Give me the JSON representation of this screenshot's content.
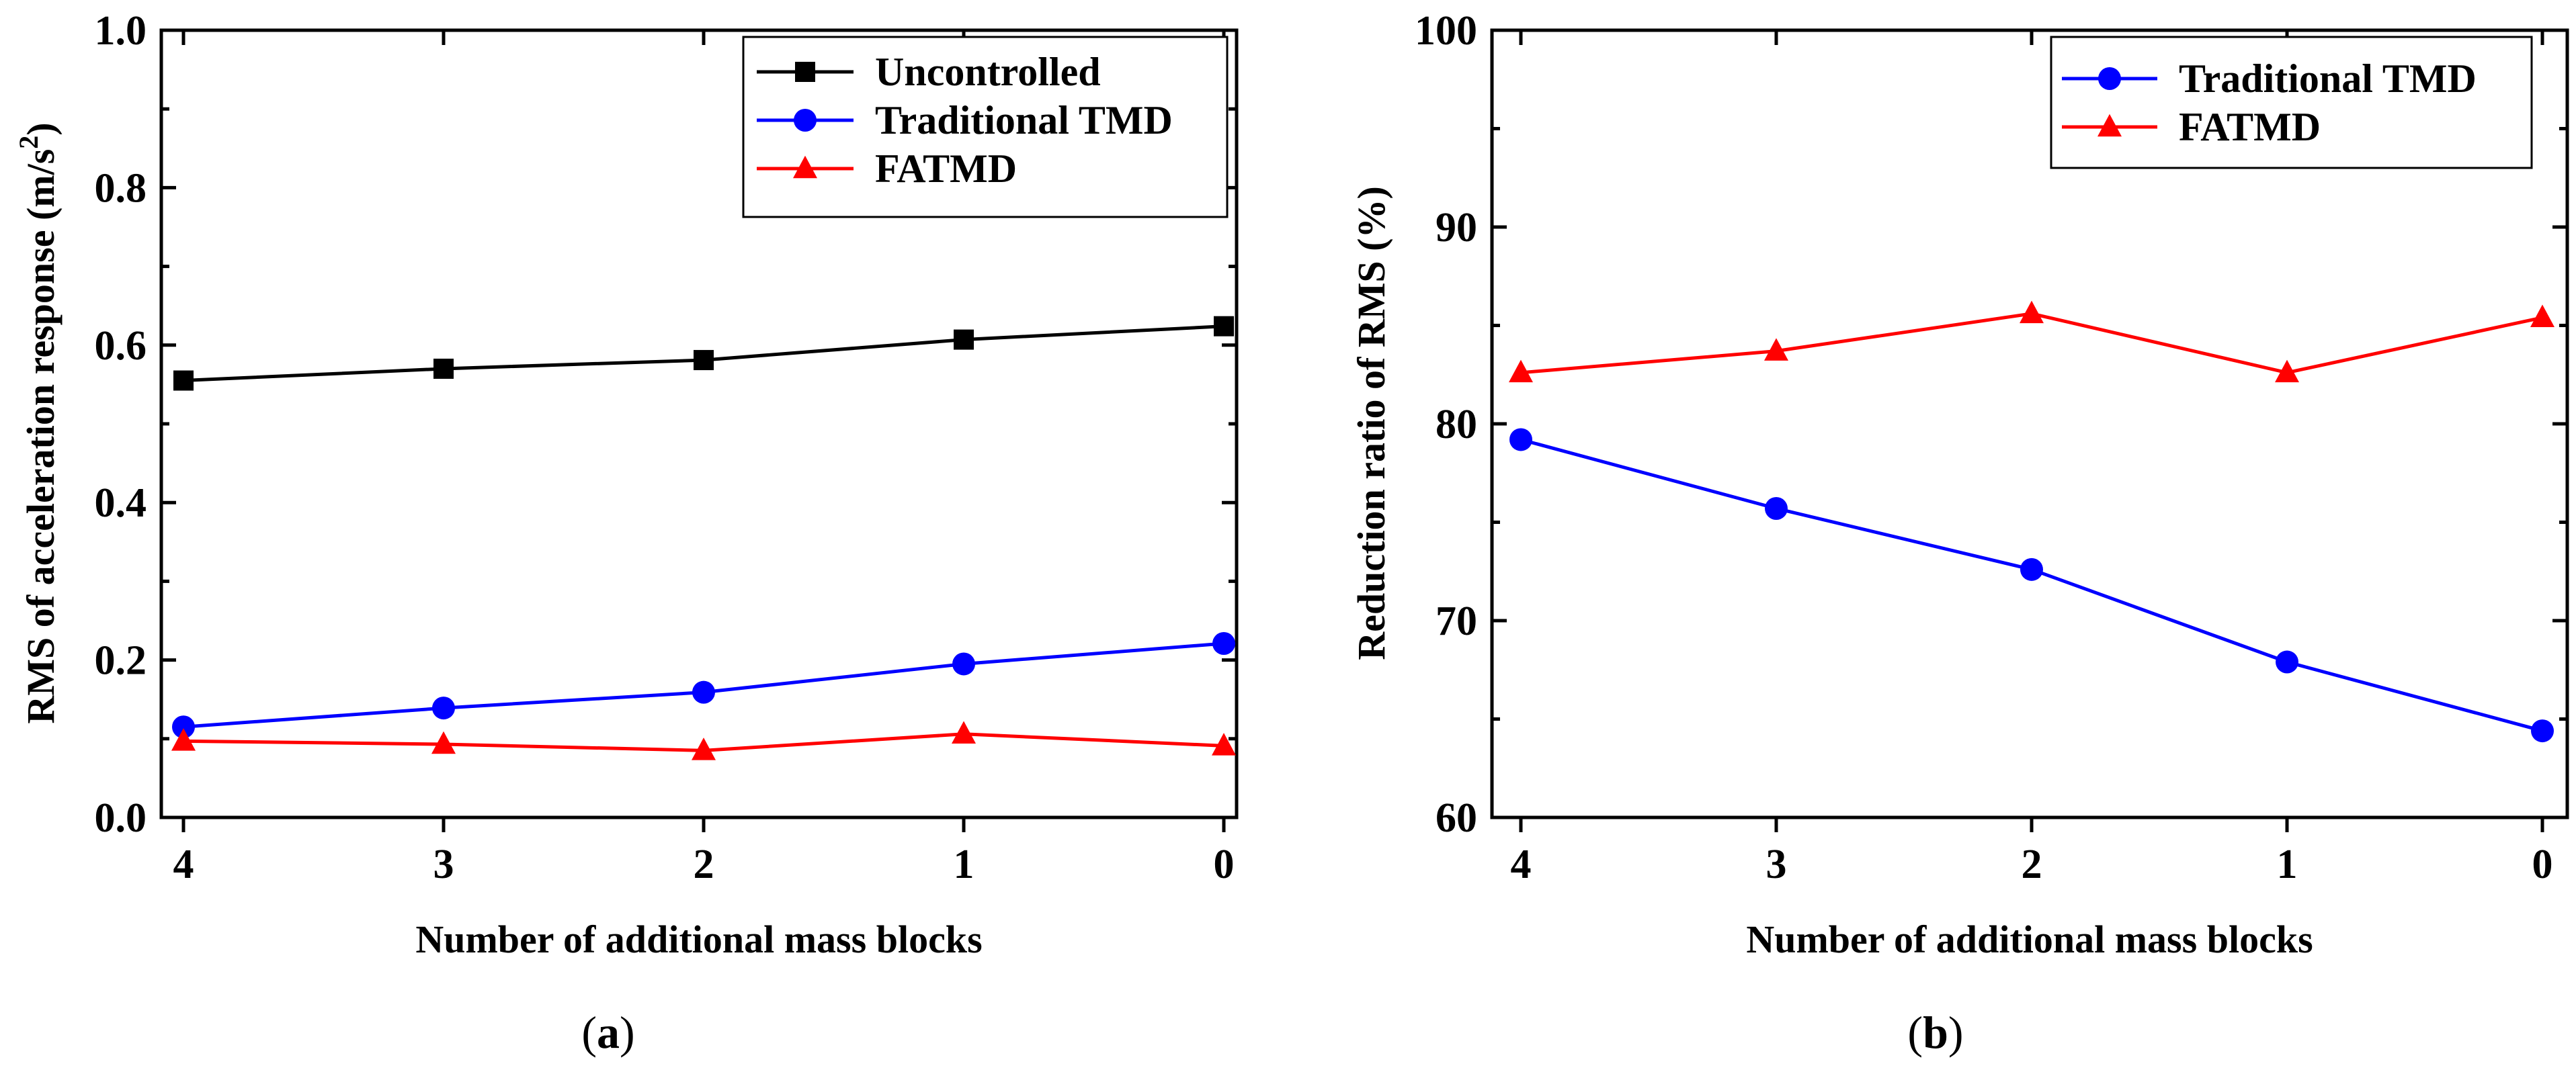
{
  "chart_data": [
    {
      "type": "line",
      "caption_letter": "a",
      "xlabel": "Number of additional mass blocks",
      "ylabel": "RMS of acceleration response (m/s²)",
      "ylabel_main": "RMS of acceleration response (m/s",
      "ylabel_sup": "2",
      "ylabel_close": ")",
      "categories": [
        "4",
        "3",
        "2",
        "1",
        "0"
      ],
      "ylim": [
        0,
        1.0
      ],
      "yticks": [
        "0.0",
        "0.2",
        "0.4",
        "0.6",
        "0.8",
        "1.0"
      ],
      "legend_position": "top-right",
      "series": [
        {
          "name": "Uncontrolled",
          "color": "#000000",
          "marker": "square",
          "values": [
            0.555,
            0.57,
            0.581,
            0.607,
            0.624
          ]
        },
        {
          "name": "Traditional TMD",
          "color": "#0000ff",
          "marker": "circle",
          "values": [
            0.115,
            0.139,
            0.159,
            0.195,
            0.221
          ]
        },
        {
          "name": "FATMD",
          "color": "#ff0000",
          "marker": "triangle",
          "values": [
            0.097,
            0.093,
            0.085,
            0.106,
            0.091
          ]
        }
      ]
    },
    {
      "type": "line",
      "caption_letter": "b",
      "xlabel": "Number of additional mass blocks",
      "ylabel": "Reduction ratio of  RMS (%)",
      "categories": [
        "4",
        "3",
        "2",
        "1",
        "0"
      ],
      "ylim": [
        60,
        100
      ],
      "yticks": [
        "60",
        "70",
        "80",
        "90",
        "100"
      ],
      "legend_position": "top-right",
      "series": [
        {
          "name": "Traditional TMD",
          "color": "#0000ff",
          "marker": "circle",
          "values": [
            79.2,
            75.7,
            72.6,
            67.9,
            64.4
          ]
        },
        {
          "name": "FATMD",
          "color": "#ff0000",
          "marker": "triangle",
          "values": [
            82.6,
            83.7,
            85.6,
            82.6,
            85.4
          ]
        }
      ]
    }
  ]
}
